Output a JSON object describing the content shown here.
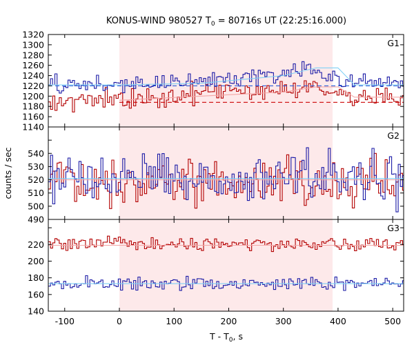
{
  "chart_data": {
    "type": "line",
    "title": "KONUS-WIND 980527 T0 = 80716s UT (22:25:16.000)",
    "title_parts": {
      "pre": "KONUS-WIND 980527 T",
      "sub": "0",
      "post": " = 80716s UT (22:25:16.000)"
    },
    "xlabel": "T - T0, s",
    "xlabel_parts": {
      "pre": "T - T",
      "sub": "0",
      "post": ", s"
    },
    "ylabel": "counts / sec",
    "xlim": [
      -130,
      520
    ],
    "xticks": [
      -100,
      0,
      100,
      200,
      300,
      400,
      500
    ],
    "xtick_labels": [
      "-100",
      "0",
      "100",
      "200",
      "300",
      "400",
      "500"
    ],
    "bin_width": 4.0,
    "highlight_interval": [
      0,
      390
    ],
    "colors": {
      "highlight": "#fde9ea",
      "series_red": "#b30000",
      "series_blue": "#1a1aa6",
      "fit_light_blue": "#7fd0f5",
      "fit_pink": "#f4a6a6",
      "background_red_dashed": "#cc0000",
      "background_blue_dashed": "#2b5fd9",
      "axis": "#000000"
    },
    "panels": [
      {
        "name": "G1",
        "ylim": [
          1140,
          1320
        ],
        "yticks": [
          1140,
          1160,
          1180,
          1200,
          1220,
          1240,
          1260,
          1280,
          1300,
          1320
        ],
        "ytick_labels": [
          "1140",
          "1160",
          "1180",
          "1200",
          "1220",
          "1240",
          "1260",
          "1280",
          "1300",
          "1320"
        ],
        "series": [
          {
            "color_key": "series_red",
            "noise_amp": 12,
            "mean_points": [
              [
                -130,
                1192
              ],
              [
                0,
                1192
              ],
              [
                100,
                1200
              ],
              [
                200,
                1210
              ],
              [
                300,
                1215
              ],
              [
                370,
                1222
              ],
              [
                390,
                1210
              ],
              [
                410,
                1200
              ],
              [
                520,
                1198
              ]
            ]
          },
          {
            "color_key": "series_blue",
            "noise_amp": 11,
            "mean_points": [
              [
                -130,
                1222
              ],
              [
                0,
                1222
              ],
              [
                100,
                1228
              ],
              [
                200,
                1232
              ],
              [
                300,
                1245
              ],
              [
                350,
                1255
              ],
              [
                390,
                1238
              ],
              [
                410,
                1225
              ],
              [
                520,
                1225
              ]
            ]
          }
        ],
        "fits": [
          {
            "color_key": "fit_light_blue",
            "dashed": false,
            "points": [
              [
                -130,
                1222
              ],
              [
                0,
                1222
              ],
              [
                150,
                1225
              ],
              [
                300,
                1240
              ],
              [
                360,
                1255
              ],
              [
                400,
                1255
              ],
              [
                430,
                1222
              ],
              [
                520,
                1222
              ]
            ]
          },
          {
            "color_key": "fit_pink",
            "dashed": false,
            "points": [
              [
                0,
                1192
              ],
              [
                150,
                1200
              ],
              [
                300,
                1208
              ],
              [
                360,
                1218
              ],
              [
                400,
                1218
              ],
              [
                430,
                1198
              ],
              [
                520,
                1198
              ]
            ]
          },
          {
            "color_key": "background_red_dashed",
            "dashed": true,
            "points": [
              [
                0,
                1188
              ],
              [
                520,
                1188
              ]
            ]
          },
          {
            "color_key": "background_blue_dashed",
            "dashed": true,
            "points": [
              [
                -130,
                1220
              ],
              [
                520,
                1220
              ]
            ]
          }
        ]
      },
      {
        "name": "G2",
        "ylim": [
          490,
          560
        ],
        "yticks": [
          490,
          500,
          510,
          520,
          530,
          540,
          550
        ],
        "ytick_labels": [
          "490",
          "500",
          "510",
          "520",
          "530",
          "540",
          "550"
        ],
        "series": [
          {
            "color_key": "series_red",
            "noise_amp": 12,
            "mean_points": [
              [
                -130,
                520
              ],
              [
                520,
                520
              ]
            ]
          },
          {
            "color_key": "series_blue",
            "noise_amp": 12,
            "mean_points": [
              [
                -130,
                522
              ],
              [
                520,
                522
              ]
            ]
          }
        ],
        "fits": [
          {
            "color_key": "fit_light_blue",
            "dashed": false,
            "points": [
              [
                -130,
                521
              ],
              [
                520,
                521
              ]
            ]
          },
          {
            "color_key": "fit_pink",
            "dashed": false,
            "points": [
              [
                -130,
                520
              ],
              [
                520,
                520
              ]
            ]
          }
        ]
      },
      {
        "name": "G3",
        "ylim": [
          140,
          250
        ],
        "yticks": [
          140,
          160,
          180,
          200,
          220,
          240
        ],
        "ytick_labels": [
          "140",
          "160",
          "180",
          "200",
          "220",
          "240"
        ],
        "series": [
          {
            "color_key": "series_red",
            "noise_amp": 5,
            "mean_points": [
              [
                -130,
                220
              ],
              [
                520,
                220
              ]
            ]
          },
          {
            "color_key": "series_blue",
            "noise_amp": 5,
            "mean_points": [
              [
                -130,
                173
              ],
              [
                520,
                173
              ]
            ]
          }
        ],
        "fits": [
          {
            "color_key": "fit_pink",
            "dashed": false,
            "points": [
              [
                -130,
                219
              ],
              [
                520,
                219
              ]
            ]
          },
          {
            "color_key": "fit_light_blue",
            "dashed": false,
            "points": [
              [
                -130,
                173
              ],
              [
                520,
                173
              ]
            ]
          }
        ]
      }
    ]
  }
}
